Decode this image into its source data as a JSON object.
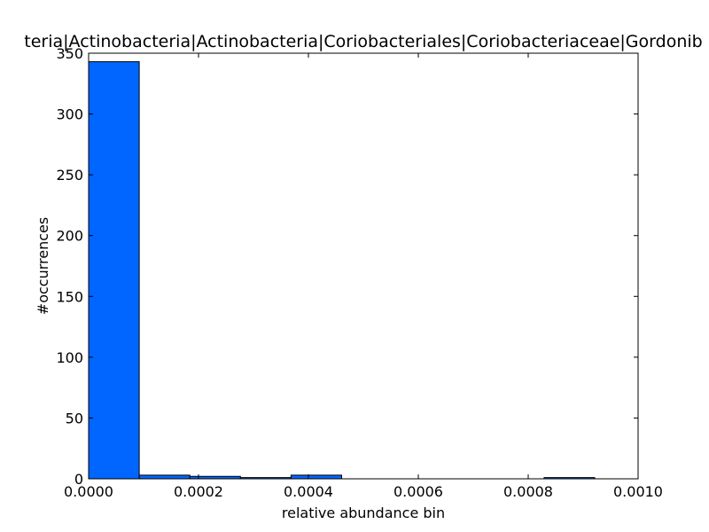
{
  "chart_data": {
    "type": "bar",
    "title": "teria|Actinobacteria|Actinobacteria|Coriobacteriales|Coriobacteriaceae|Gordonib",
    "xlabel": "relative abundance bin",
    "ylabel": "#occurrences",
    "xlim": [
      0.0,
      0.001
    ],
    "ylim": [
      0,
      350
    ],
    "xticks": [
      "0.0000",
      "0.0002",
      "0.0004",
      "0.0006",
      "0.0008",
      "0.0010"
    ],
    "xtick_values": [
      0.0,
      0.0002,
      0.0004,
      0.0006,
      0.0008,
      0.001
    ],
    "yticks": [
      "0",
      "50",
      "100",
      "150",
      "200",
      "250",
      "300",
      "350"
    ],
    "ytick_values": [
      0,
      50,
      100,
      150,
      200,
      250,
      300,
      350
    ],
    "bin_edges": [
      0.0,
      9.21e-05,
      0.0001842,
      0.0002763,
      0.0003684,
      0.0004605,
      0.0005526,
      0.0006447,
      0.0007368,
      0.0008289,
      0.000921
    ],
    "values": [
      343,
      3,
      2,
      1,
      3,
      0,
      0,
      0,
      0,
      1
    ],
    "bar_color": "#0066ff",
    "edge_color": "#000000",
    "grid": false
  }
}
